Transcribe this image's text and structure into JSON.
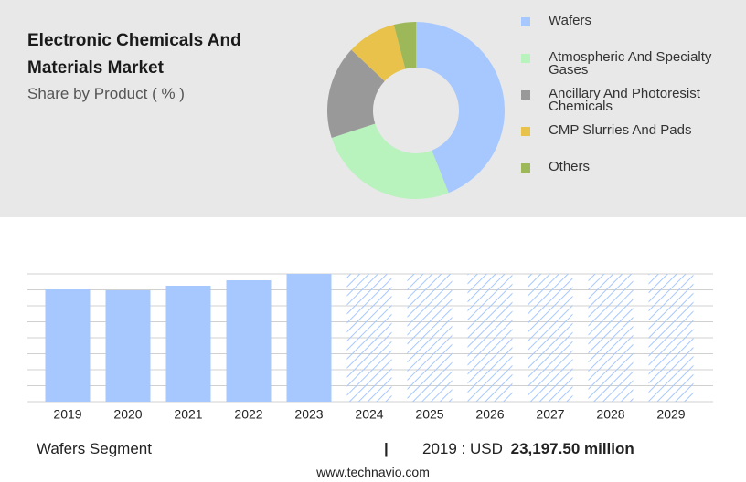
{
  "chart_data": [
    {
      "type": "donut",
      "title": "Electronic Chemicals And Materials Market",
      "subtitle": "Share by Product ( % )",
      "categories": [
        "Wafers",
        "Atmospheric And Specialty Gases",
        "Ancillary And Photoresist Chemicals",
        "CMP Slurries And Pads",
        "Others"
      ],
      "values": [
        44,
        26,
        17,
        9,
        4
      ],
      "colors": [
        "#a6c8ff",
        "#b8f2bc",
        "#999999",
        "#e8c24a",
        "#9cb859"
      ]
    },
    {
      "type": "bar",
      "title": "Wafers Segment",
      "categories": [
        "2019",
        "2020",
        "2021",
        "2022",
        "2023",
        "2024",
        "2025",
        "2026",
        "2027",
        "2028",
        "2029"
      ],
      "values": [
        23197.5,
        23009,
        23952,
        25084,
        26404,
        null,
        null,
        null,
        null,
        null,
        null
      ],
      "value_labels": [
        "23,197.50 million",
        null,
        null,
        null,
        null,
        null,
        null,
        null,
        null,
        null,
        null
      ],
      "currency": "USD",
      "color": "#a6c8ff",
      "ylim": [
        0,
        26404
      ],
      "grid": true
    }
  ],
  "footer": {
    "source": "www.technavio.com"
  }
}
